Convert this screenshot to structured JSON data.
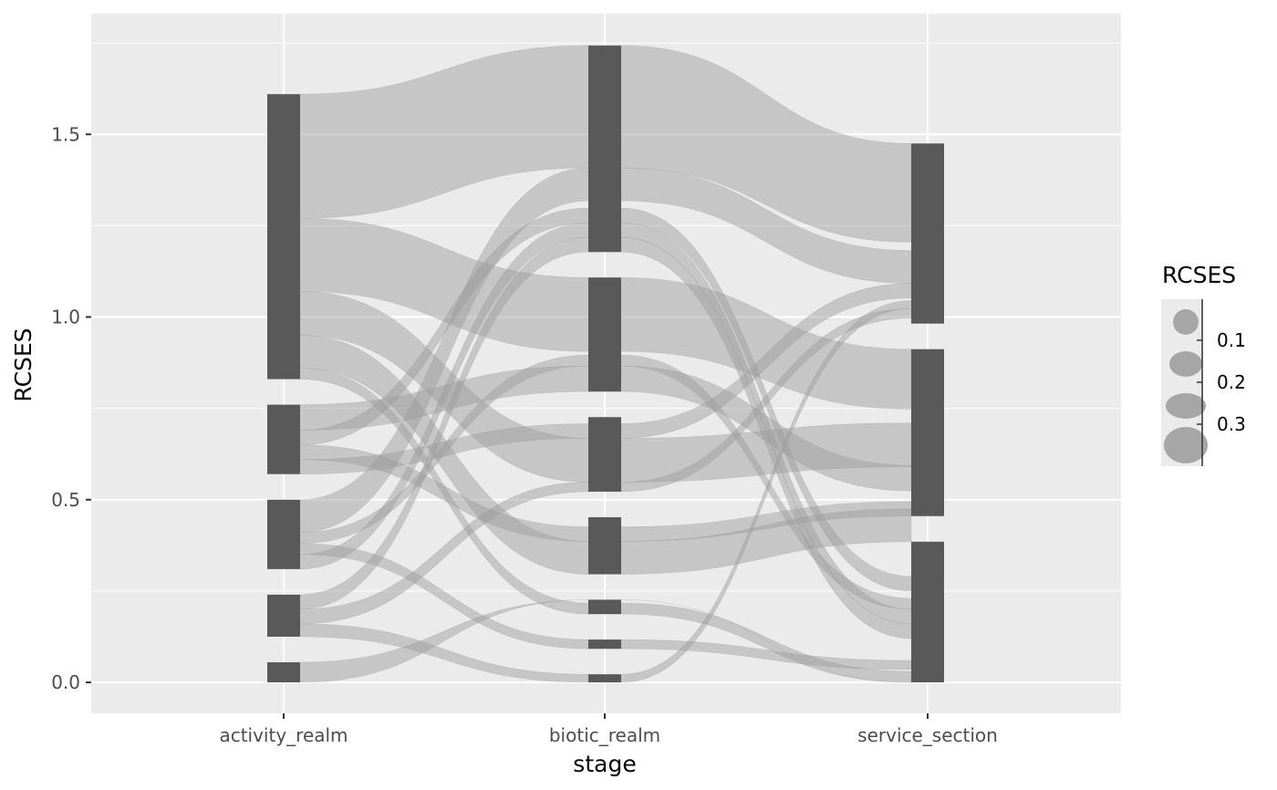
{
  "chart_data": {
    "type": "alluvial",
    "xlabel": "stage",
    "ylabel": "RCSES",
    "stages": [
      "activity_realm",
      "biotic_realm",
      "service_section"
    ],
    "ylim": [
      -0.085,
      1.83
    ],
    "y_ticks": [
      0.0,
      0.5,
      1.0,
      1.5
    ],
    "y_tick_labels": [
      "0.0",
      "0.5",
      "1.0",
      "1.5"
    ],
    "grid": true,
    "legend": {
      "title": "RCSES",
      "position": "right",
      "labels": [
        "0.1",
        "0.2",
        "0.3"
      ],
      "values": [
        0.1,
        0.2,
        0.3
      ]
    },
    "strata": [
      [
        {
          "ymin": 0.0,
          "ymax": 0.055
        },
        {
          "ymin": 0.125,
          "ymax": 0.24
        },
        {
          "ymin": 0.31,
          "ymax": 0.5
        },
        {
          "ymin": 0.57,
          "ymax": 0.76
        },
        {
          "ymin": 0.83,
          "ymax": 1.61
        }
      ],
      [
        {
          "ymin": 0.0,
          "ymax": 0.022
        },
        {
          "ymin": 0.092,
          "ymax": 0.117
        },
        {
          "ymin": 0.187,
          "ymax": 0.226
        },
        {
          "ymin": 0.296,
          "ymax": 0.452
        },
        {
          "ymin": 0.522,
          "ymax": 0.726
        },
        {
          "ymin": 0.796,
          "ymax": 1.108
        },
        {
          "ymin": 1.178,
          "ymax": 1.743
        }
      ],
      [
        {
          "ymin": 0.0,
          "ymax": 0.385
        },
        {
          "ymin": 0.455,
          "ymax": 0.912
        },
        {
          "ymin": 0.982,
          "ymax": 1.475
        }
      ]
    ],
    "flows": [
      {
        "bands": [
          [
            1.27,
            1.61
          ],
          [
            1.408,
            1.743
          ],
          [
            1.205,
            1.475
          ]
        ],
        "label": "0.34"
      },
      {
        "bands": [
          [
            1.07,
            1.27
          ],
          [
            0.906,
            1.108
          ],
          [
            0.748,
            0.912
          ]
        ],
        "label": "0.20"
      },
      {
        "bands": [
          [
            0.95,
            1.07
          ],
          [
            0.548,
            0.668
          ],
          [
            0.59,
            0.71
          ]
        ],
        "label": "0.12"
      },
      {
        "bands": [
          [
            0.86,
            0.95
          ],
          [
            0.296,
            0.386
          ],
          [
            0.385,
            0.475
          ]
        ],
        "label": "0.09"
      },
      {
        "bands": [
          [
            0.41,
            0.5
          ],
          [
            1.318,
            1.408
          ],
          [
            1.092,
            1.182
          ]
        ],
        "label": "0.09"
      },
      {
        "bands": [
          [
            0.83,
            0.86
          ],
          [
            0.187,
            0.217
          ],
          [
            0.0,
            0.03
          ]
        ],
        "label": "0.03"
      },
      {
        "bands": [
          [
            0.69,
            0.76
          ],
          [
            0.796,
            0.866
          ],
          [
            0.524,
            0.594
          ]
        ],
        "label": "0.07"
      },
      {
        "bands": [
          [
            0.65,
            0.69
          ],
          [
            1.258,
            1.298
          ],
          [
            0.25,
            0.29
          ]
        ],
        "label": "0.04"
      },
      {
        "bands": [
          [
            0.61,
            0.65
          ],
          [
            0.386,
            0.426
          ],
          [
            0.455,
            0.495
          ]
        ],
        "label": "0.04"
      },
      {
        "bands": [
          [
            0.57,
            0.61
          ],
          [
            0.668,
            0.708
          ],
          [
            1.052,
            1.092
          ]
        ],
        "label": "0.04"
      },
      {
        "bands": [
          [
            0.38,
            0.41
          ],
          [
            0.866,
            0.896
          ],
          [
            0.2,
            0.23
          ]
        ],
        "label": "0.03"
      },
      {
        "bands": [
          [
            0.35,
            0.38
          ],
          [
            0.092,
            0.117
          ],
          [
            0.035,
            0.06
          ]
        ],
        "label": "0.03"
      },
      {
        "bands": [
          [
            0.31,
            0.35
          ],
          [
            1.218,
            1.258
          ],
          [
            0.16,
            0.2
          ]
        ],
        "label": "0.04"
      },
      {
        "bands": [
          [
            0.2,
            0.24
          ],
          [
            1.178,
            1.218
          ],
          [
            0.12,
            0.16
          ]
        ],
        "label": "0.04"
      },
      {
        "bands": [
          [
            0.16,
            0.2
          ],
          [
            0.522,
            0.548
          ],
          [
            0.997,
            1.023
          ]
        ],
        "label": "0.03"
      },
      {
        "bands": [
          [
            0.125,
            0.16
          ],
          [
            0.0,
            0.022
          ],
          [
            1.023,
            1.045
          ]
        ],
        "label": "0.03"
      },
      {
        "bands": [
          [
            0.0,
            0.055
          ],
          [
            0.226,
            0.226
          ],
          [
            0.0,
            0.0
          ]
        ],
        "label": "0.06"
      }
    ]
  }
}
